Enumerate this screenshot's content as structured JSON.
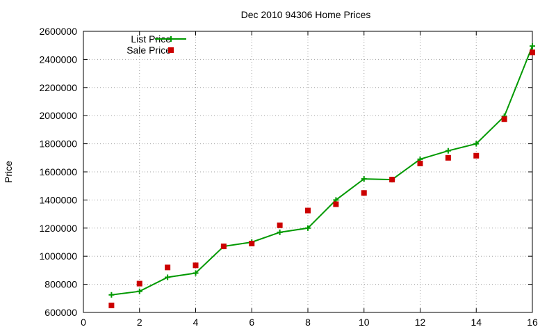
{
  "chart_data": {
    "type": "line",
    "title": "Dec 2010 94306 Home Prices",
    "xlabel": "",
    "ylabel": "Price",
    "xlim": [
      0,
      16
    ],
    "ylim": [
      600000,
      2600000
    ],
    "xticks": [
      0,
      2,
      4,
      6,
      8,
      10,
      12,
      14,
      16
    ],
    "yticks": [
      600000,
      800000,
      1000000,
      1200000,
      1400000,
      1600000,
      1800000,
      2000000,
      2200000,
      2400000,
      2600000
    ],
    "grid": true,
    "legend": "top-left",
    "series": [
      {
        "name": "List Price",
        "style": "line-plus",
        "color": "#009900",
        "x": [
          1,
          2,
          3,
          4,
          5,
          6,
          7,
          8,
          9,
          10,
          11,
          12,
          13,
          14,
          15,
          16
        ],
        "y": [
          725000,
          750000,
          850000,
          880000,
          1070000,
          1100000,
          1170000,
          1200000,
          1400000,
          1550000,
          1545000,
          1690000,
          1750000,
          1800000,
          1995000,
          2495000
        ]
      },
      {
        "name": "Sale Price",
        "style": "square",
        "color": "#cc0000",
        "x": [
          1,
          2,
          3,
          4,
          5,
          6,
          7,
          8,
          9,
          10,
          11,
          12,
          13,
          14,
          15,
          16
        ],
        "y": [
          650000,
          805000,
          920000,
          935000,
          1070000,
          1090000,
          1220000,
          1325000,
          1370000,
          1450000,
          1545000,
          1660000,
          1700000,
          1715000,
          1975000,
          2450000
        ]
      }
    ]
  }
}
